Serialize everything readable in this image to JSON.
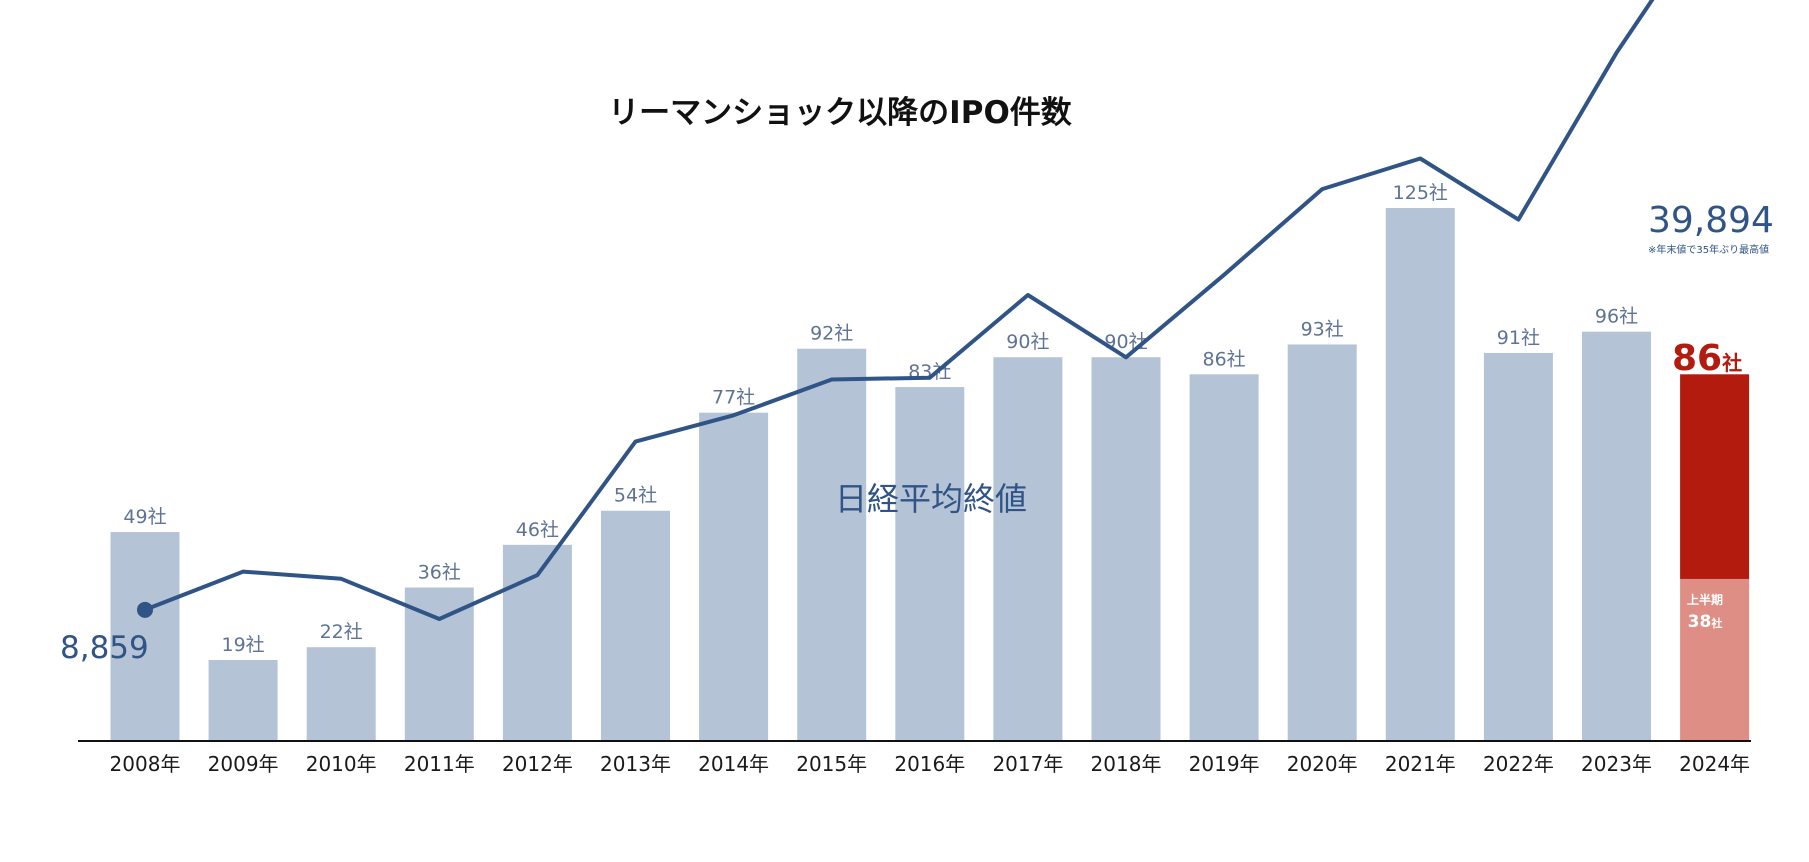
{
  "chart_data": {
    "type": "bar",
    "title": "リーマンショック以降のIPO件数",
    "categories": [
      "2008年",
      "2009年",
      "2010年",
      "2011年",
      "2012年",
      "2013年",
      "2014年",
      "2015年",
      "2016年",
      "2017年",
      "2018年",
      "2019年",
      "2020年",
      "2021年",
      "2022年",
      "2023年",
      "2024年"
    ],
    "series": [
      {
        "kind": "bar",
        "unit": "社",
        "values": [
          49,
          19,
          22,
          36,
          46,
          54,
          77,
          92,
          83,
          90,
          90,
          86,
          93,
          125,
          91,
          96,
          86
        ],
        "labels": [
          "49社",
          "19社",
          "22社",
          "36社",
          "46社",
          "54社",
          "77社",
          "92社",
          "83社",
          "90社",
          "90社",
          "86社",
          "93社",
          "125社",
          "91社",
          "96社",
          ""
        ]
      },
      {
        "kind": "line",
        "name": "日経平均終値",
        "values": [
          8859,
          10546,
          10229,
          8455,
          10395,
          16291,
          17451,
          19034,
          19114,
          22765,
          20015,
          23657,
          27444,
          28792,
          26095,
          33464,
          39894
        ]
      }
    ],
    "highlight": {
      "value_text": "86",
      "unit_text": "社",
      "first_half_label": "上半期",
      "first_half_value": "38",
      "first_half_value_num": 38,
      "first_half_unit": "社"
    },
    "line_start_label": "8,859",
    "line_end_label": "39,894",
    "line_end_note": "※年末値で35年ぶり最高値",
    "ylim_bar": [
      0,
      130
    ],
    "ylim_line": [
      0,
      42000
    ],
    "grid": false,
    "colors": {
      "bar": "#b5c3d7",
      "line": "#2f5485",
      "highlight_dark": "#b31b0f",
      "highlight_light": "#de8e84",
      "bar_label": "#5f7394",
      "axis": "#111111"
    }
  }
}
